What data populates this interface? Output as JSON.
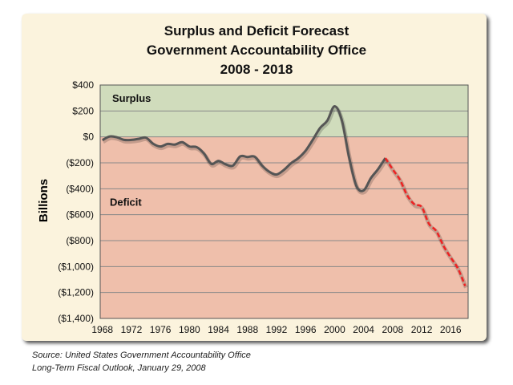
{
  "chart_data": {
    "type": "line",
    "title": [
      "Surplus and Deficit Forecast",
      "Government Accountability Office",
      "2008 - 2018"
    ],
    "ylabel": "Billions",
    "xlabel": "",
    "ylim": [
      -1400,
      400
    ],
    "xlim": [
      1967.7,
      2018.4
    ],
    "grid": true,
    "y_ticks": [
      400,
      200,
      0,
      -200,
      -400,
      -600,
      -800,
      -1000,
      -1200,
      -1400
    ],
    "y_tick_labels": [
      "$400",
      "$200",
      "$0",
      "($200)",
      "($400)",
      "($600)",
      "($800)",
      "($1,000)",
      "($1,200)",
      "($1,400)"
    ],
    "x_ticks": [
      1968,
      1972,
      1976,
      1980,
      1984,
      1988,
      1992,
      1996,
      2000,
      2004,
      2008,
      2012,
      2016
    ],
    "regions": [
      {
        "label": "Surplus",
        "from": 0,
        "to": 400,
        "color": "#d0dcbc"
      },
      {
        "label": "Deficit",
        "from": -1400,
        "to": 0,
        "color": "#efbfab"
      }
    ],
    "series": [
      {
        "style": "solid",
        "color": "#555555",
        "x": [
          1968,
          1969,
          1970,
          1971,
          1972,
          1973,
          1974,
          1975,
          1976,
          1977,
          1978,
          1979,
          1980,
          1981,
          1982,
          1983,
          1984,
          1985,
          1986,
          1987,
          1988,
          1989,
          1990,
          1991,
          1992,
          1993,
          1994,
          1995,
          1996,
          1997,
          1998,
          1999,
          2000,
          2001,
          2002,
          2003,
          2004,
          2005,
          2006,
          2007
        ],
        "y": [
          -25,
          3,
          -3,
          -23,
          -23,
          -15,
          -6,
          -53,
          -74,
          -54,
          -59,
          -41,
          -74,
          -79,
          -128,
          -208,
          -185,
          -212,
          -221,
          -150,
          -155,
          -153,
          -221,
          -269,
          -290,
          -255,
          -203,
          -164,
          -107,
          -22,
          69,
          126,
          236,
          128,
          -158,
          -378,
          -413,
          -318,
          -248,
          -163
        ]
      },
      {
        "style": "dashed",
        "color": "#ee2222",
        "x": [
          2007,
          2008,
          2009,
          2010,
          2011,
          2012,
          2013,
          2014,
          2015,
          2016,
          2017,
          2018
        ],
        "y": [
          -163,
          -250,
          -330,
          -450,
          -520,
          -540,
          -670,
          -725,
          -840,
          -930,
          -1015,
          -1150
        ]
      }
    ]
  },
  "source": [
    "Source: United States Government Accountability Office",
    "Long-Term Fiscal Outlook, January 29, 2008"
  ]
}
